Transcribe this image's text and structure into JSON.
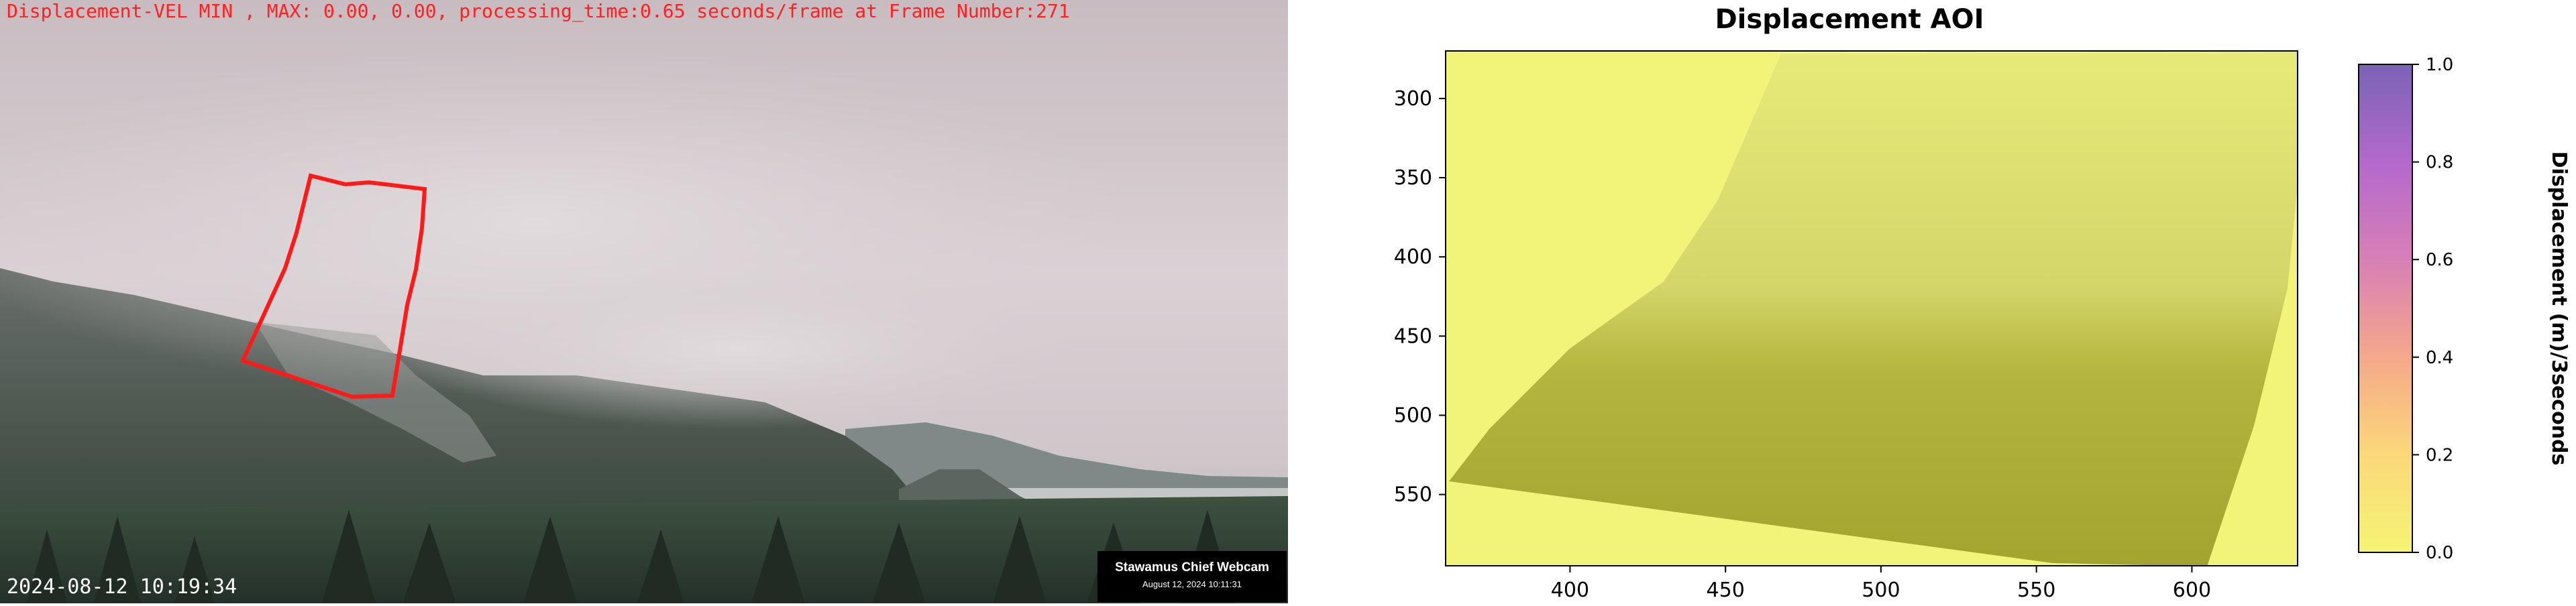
{
  "camera": {
    "overlay_text": "Displacement-VEL MIN , MAX: 0.00, 0.00, processing_time:0.65 seconds/frame at Frame Number:271",
    "timestamp": "2024-08-12 10:19:34",
    "watermark_title": "Stawamus Chief Webcam",
    "watermark_date": "August 12, 2024 10:11:31",
    "aoi_color": "#ff1a1a"
  },
  "chart_data": {
    "type": "heatmap",
    "title": "Displacement AOI",
    "xlabel": "",
    "ylabel": "",
    "x_ticks": [
      400,
      450,
      500,
      550,
      600
    ],
    "y_ticks": [
      300,
      350,
      400,
      450,
      500,
      550
    ],
    "xlim": [
      360,
      634
    ],
    "ylim": [
      595,
      270
    ],
    "values_min": 0.0,
    "values_max": 1.0,
    "colorbar": {
      "label": "Displacement (m)/3seconds",
      "ticks": [
        "0.0",
        "0.2",
        "0.4",
        "0.6",
        "0.8",
        "1.0"
      ],
      "colors": [
        "#f4f474",
        "#fbd87a",
        "#f4a88a",
        "#d77fb6",
        "#b369cc",
        "#7a63b5"
      ]
    }
  }
}
